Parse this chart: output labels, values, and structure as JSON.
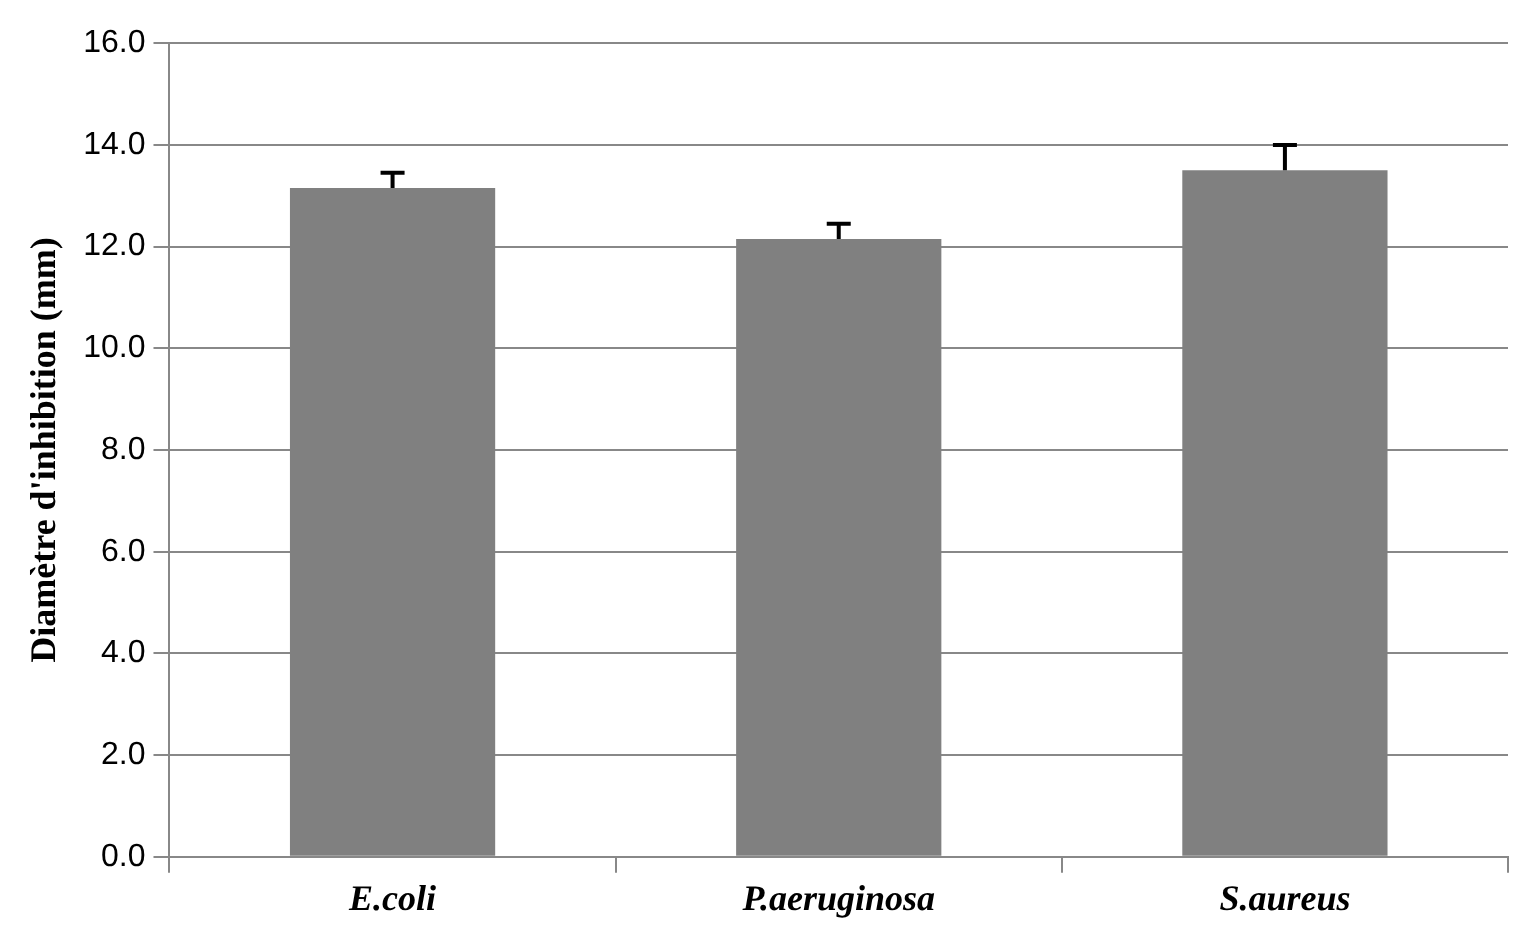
{
  "chart_data": {
    "type": "bar",
    "ylabel": "Diamètre d'inhibition (mm)",
    "categories": [
      "E.coli",
      "P.aeruginosa",
      "S.aureus"
    ],
    "values": [
      13.15,
      12.15,
      13.5
    ],
    "errors": [
      0.3,
      0.3,
      0.5
    ],
    "color": "#808080",
    "ylim": [
      0,
      16
    ],
    "yticks": [
      {
        "value": 0,
        "label": "0.0"
      },
      {
        "value": 2,
        "label": "2.0"
      },
      {
        "value": 4,
        "label": "4.0"
      },
      {
        "value": 6,
        "label": "6.0"
      },
      {
        "value": 8,
        "label": "8.0"
      },
      {
        "value": 10,
        "label": "10.0"
      },
      {
        "value": 12,
        "label": "12.0"
      },
      {
        "value": 14,
        "label": "14.0"
      },
      {
        "value": 16,
        "label": "16.0"
      }
    ],
    "grid": "y",
    "legend": false
  }
}
